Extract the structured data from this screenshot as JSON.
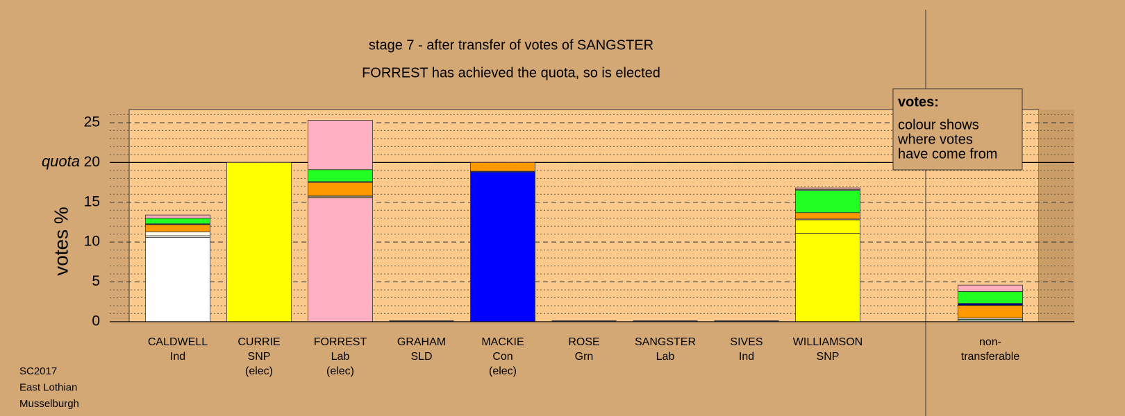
{
  "chart_data": {
    "type": "stacked-bar",
    "title": "stage 7 - after transfer of votes of SANGSTER",
    "subtitle": "FORREST has achieved the quota, so is elected",
    "y_label": "votes %",
    "ylim": [
      0,
      27
    ],
    "yticks": [
      0,
      5,
      10,
      15,
      20,
      25
    ],
    "yminor_ticks": [
      1,
      2,
      3,
      4,
      6,
      7,
      8,
      9,
      11,
      12,
      13,
      14,
      16,
      17,
      18,
      19,
      21,
      22,
      23,
      24,
      26
    ],
    "quota": {
      "label": "quota",
      "value": 20
    },
    "categories": [
      [
        "CALDWELL",
        "Ind"
      ],
      [
        "CURRIE",
        "SNP",
        "(elec)"
      ],
      [
        "FORREST",
        "Lab",
        "(elec)"
      ],
      [
        "GRAHAM",
        "SLD"
      ],
      [
        "MACKIE",
        "Con",
        "(elec)"
      ],
      [
        "ROSE",
        "Grn"
      ],
      [
        "SANGSTER",
        "Lab"
      ],
      [
        "SIVES",
        "Ind"
      ],
      [
        "WILLIAMSON",
        "SNP"
      ],
      [
        "non-",
        "transferable"
      ]
    ],
    "stacks": [
      [
        {
          "value": 10.6,
          "color": "#ffffff"
        },
        {
          "value": 0.2,
          "color": "#ffffff"
        },
        {
          "value": 0.5,
          "color": "#fffbe8"
        },
        {
          "value": 0.9,
          "color": "#ff9900"
        },
        {
          "value": 0.1,
          "color": "#000080"
        },
        {
          "value": 0.7,
          "color": "#22ff22"
        },
        {
          "value": 0.4,
          "color": "#ffb0c0"
        }
      ],
      [
        {
          "value": 20.0,
          "color": "#ffff00"
        }
      ],
      [
        {
          "value": 15.6,
          "color": "#ffb0c0"
        },
        {
          "value": 0.1,
          "color": "#ffff00"
        },
        {
          "value": 0.1,
          "color": "#ffffff"
        },
        {
          "value": 1.7,
          "color": "#ff9900"
        },
        {
          "value": 0.1,
          "color": "#000080"
        },
        {
          "value": 1.5,
          "color": "#22ff22"
        },
        {
          "value": 6.2,
          "color": "#ffb0c0"
        }
      ],
      [
        {
          "value": 0,
          "color": "#ff9900"
        }
      ],
      [
        {
          "value": 18.8,
          "color": "#0000ff"
        },
        {
          "value": 0.1,
          "color": "#000080"
        },
        {
          "value": 1.1,
          "color": "#ff9900"
        }
      ],
      [
        {
          "value": 0,
          "color": "#22ff22"
        }
      ],
      [
        {
          "value": 0,
          "color": "#ffb0c0"
        }
      ],
      [
        {
          "value": 0,
          "color": "#ffffff"
        }
      ],
      [
        {
          "value": 11.1,
          "color": "#ffff00"
        },
        {
          "value": 1.7,
          "color": "#ffff00"
        },
        {
          "value": 0.1,
          "color": "#ffffff"
        },
        {
          "value": 0.8,
          "color": "#ff9900"
        },
        {
          "value": 2.8,
          "color": "#22ff22"
        },
        {
          "value": 0.1,
          "color": "#ffffff"
        },
        {
          "value": 0.2,
          "color": "#ffb0c0"
        }
      ],
      [
        {
          "value": 0.2,
          "color": "#dddddd"
        },
        {
          "value": 0.1,
          "color": "#22ff22"
        },
        {
          "value": 0.15,
          "color": "#ffffff"
        },
        {
          "value": 1.6,
          "color": "#ff9900"
        },
        {
          "value": 0.25,
          "color": "#000080"
        },
        {
          "value": 1.5,
          "color": "#22ff22"
        },
        {
          "value": 0.8,
          "color": "#ffb0c0"
        }
      ]
    ],
    "legend": {
      "title": "votes:",
      "lines": [
        "colour shows",
        "where votes",
        "have come from"
      ]
    },
    "footer": [
      "SC2017",
      "East Lothian",
      "Musselburgh"
    ]
  }
}
